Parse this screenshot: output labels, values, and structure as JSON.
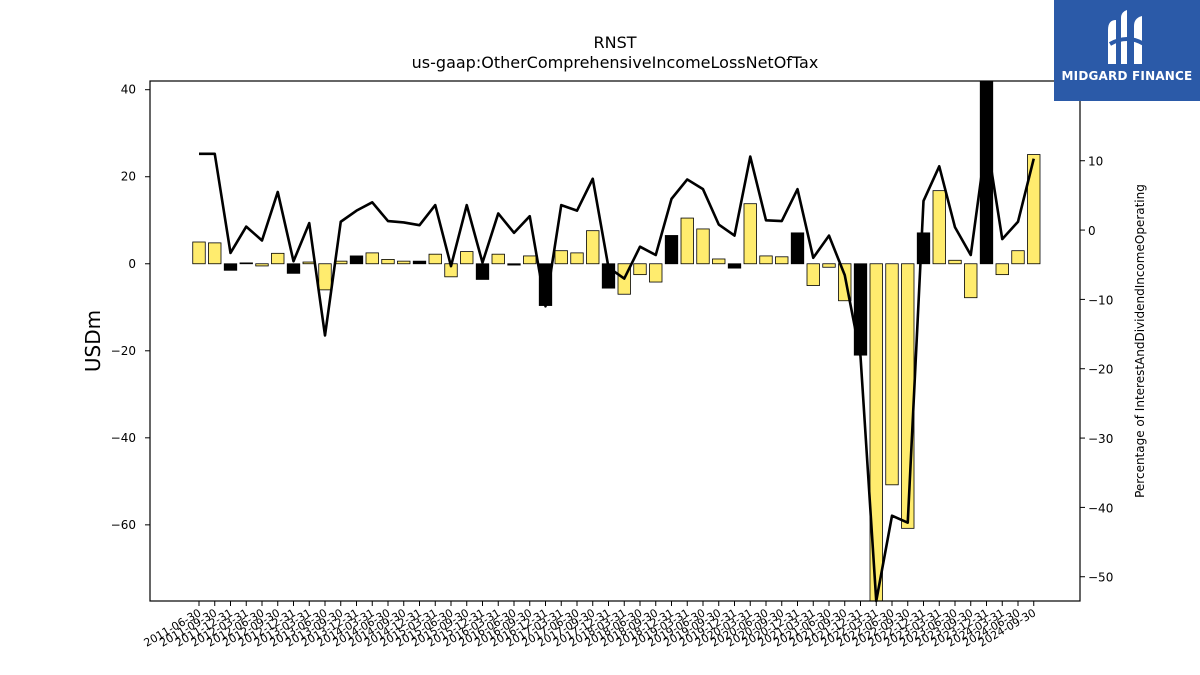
{
  "chart_data": {
    "type": "bar",
    "title": "RNST",
    "subtitle": "us-gaap:OtherComprehensiveIncomeLossNetOfTax",
    "ylabel": "USDm",
    "y2label": "Percentage of InterestAndDividendIncomeOperating",
    "ylim": [
      -77.5,
      42
    ],
    "y2lim": [
      -53.5,
      21.5
    ],
    "yticks": [
      40,
      20,
      0,
      -20,
      -40,
      -60
    ],
    "y2ticks": [
      10,
      0,
      -10,
      -20,
      -30,
      -40,
      -50
    ],
    "categories": [
      "2011-06-30",
      "2011-09-30",
      "2011-12-31",
      "2012-03-31",
      "2012-06-30",
      "2012-09-30",
      "2012-12-31",
      "2013-03-31",
      "2013-06-30",
      "2013-09-30",
      "2013-12-31",
      "2014-03-31",
      "2014-06-30",
      "2014-09-30",
      "2014-12-31",
      "2015-03-31",
      "2015-06-30",
      "2015-09-30",
      "2015-12-31",
      "2016-03-31",
      "2016-06-30",
      "2016-09-30",
      "2016-12-31",
      "2017-03-31",
      "2017-06-30",
      "2017-09-30",
      "2017-12-31",
      "2018-03-31",
      "2018-06-30",
      "2018-09-30",
      "2018-12-31",
      "2019-03-31",
      "2019-06-30",
      "2019-09-30",
      "2019-12-31",
      "2020-03-31",
      "2020-06-30",
      "2020-09-30",
      "2020-12-31",
      "2021-03-31",
      "2021-06-30",
      "2021-09-30",
      "2021-12-31",
      "2022-03-31",
      "2022-06-30",
      "2022-09-30",
      "2022-12-31",
      "2023-03-31",
      "2023-06-30",
      "2023-09-30",
      "2023-12-31",
      "2024-03-31",
      "2024-06-30",
      "2024-09-30"
    ],
    "series": [
      {
        "values": [
          5,
          4.8,
          -1.5,
          0.2,
          -0.5,
          2.4,
          -2.2,
          0.4,
          -6,
          0.6,
          1.8,
          2.5,
          1,
          0.6,
          0.6,
          2.2,
          -3,
          2.8,
          -3.6,
          2.2,
          -0.3,
          1.8,
          -9.6,
          3,
          2.5,
          7.6,
          -5.6,
          -7,
          -2.5,
          -4.2,
          6.5,
          10.5,
          8,
          1.1,
          -1,
          13.8,
          1.8,
          1.6,
          7.1,
          -5,
          -0.8,
          -8.5,
          -21,
          -77.5,
          -50.8,
          -60.8,
          7.1,
          16.8,
          0.8,
          -7.8,
          42,
          -2.5,
          3,
          25.1
        ],
        "colors": [
          "#ffec6e",
          "#ffec6e",
          "#000000",
          "#000000",
          "#ffec6e",
          "#ffec6e",
          "#000000",
          "#ffec6e",
          "#ffec6e",
          "#ffec6e",
          "#000000",
          "#ffec6e",
          "#ffec6e",
          "#ffec6e",
          "#000000",
          "#ffec6e",
          "#ffec6e",
          "#ffec6e",
          "#000000",
          "#ffec6e",
          "#000000",
          "#ffec6e",
          "#000000",
          "#ffec6e",
          "#ffec6e",
          "#ffec6e",
          "#000000",
          "#ffec6e",
          "#ffec6e",
          "#ffec6e",
          "#000000",
          "#ffec6e",
          "#ffec6e",
          "#ffec6e",
          "#000000",
          "#ffec6e",
          "#ffec6e",
          "#ffec6e",
          "#000000",
          "#ffec6e",
          "#ffec6e",
          "#ffec6e",
          "#000000",
          "#ffec6e",
          "#ffec6e",
          "#ffec6e",
          "#000000",
          "#ffec6e",
          "#ffec6e",
          "#ffec6e",
          "#000000",
          "#ffec6e",
          "#ffec6e",
          "#ffec6e"
        ]
      },
      {
        "axis": "right",
        "type": "line",
        "values": [
          11,
          11,
          -3.3,
          0.5,
          -1.5,
          5.5,
          -4.5,
          1,
          -15.2,
          1.2,
          2.8,
          4,
          1.3,
          1.1,
          0.7,
          3.6,
          -5.2,
          3.6,
          -4.7,
          2.4,
          -0.4,
          2,
          -11,
          3.6,
          2.8,
          7.4,
          -5.4,
          -7,
          -2.4,
          -3.6,
          4.5,
          7.3,
          5.9,
          0.8,
          -0.8,
          10.6,
          1.4,
          1.3,
          5.9,
          -4,
          -0.8,
          -6.5,
          -18.2,
          -53.5,
          -41.2,
          -42.2,
          4.2,
          9.2,
          0.4,
          -3.6,
          13.2,
          -1.3,
          1.2,
          10.3
        ]
      }
    ],
    "grid": false
  },
  "logo": {
    "text": "MIDGARD FINANCE",
    "color": "#2b5aa8"
  }
}
